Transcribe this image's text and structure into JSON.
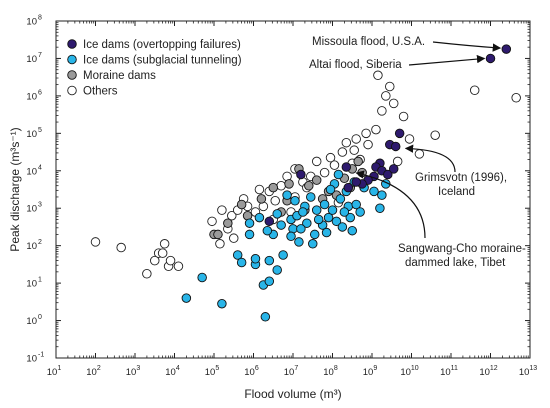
{
  "chart_data": {
    "type": "scatter",
    "xlabel": "Flood volume (m³)",
    "ylabel": "Peak discharge (m³s⁻¹)",
    "x_scale": "log",
    "y_scale": "log",
    "xlim": [
      1,
      13
    ],
    "ylim": [
      -1,
      8
    ],
    "x_ticks": [
      {
        "base": "10",
        "exp": "1"
      },
      {
        "base": "10",
        "exp": "2"
      },
      {
        "base": "10",
        "exp": "3"
      },
      {
        "base": "10",
        "exp": "4"
      },
      {
        "base": "10",
        "exp": "5"
      },
      {
        "base": "10",
        "exp": "6"
      },
      {
        "base": "10",
        "exp": "7"
      },
      {
        "base": "10",
        "exp": "8"
      },
      {
        "base": "10",
        "exp": "9"
      },
      {
        "base": "10",
        "exp": "10"
      },
      {
        "base": "10",
        "exp": "11"
      },
      {
        "base": "10",
        "exp": "12"
      },
      {
        "base": "10",
        "exp": "13"
      }
    ],
    "y_ticks": [
      {
        "base": "10",
        "exp": "-1"
      },
      {
        "base": "10",
        "exp": "0"
      },
      {
        "base": "10",
        "exp": "1"
      },
      {
        "base": "10",
        "exp": "2"
      },
      {
        "base": "10",
        "exp": "3"
      },
      {
        "base": "10",
        "exp": "4"
      },
      {
        "base": "10",
        "exp": "5"
      },
      {
        "base": "10",
        "exp": "6"
      },
      {
        "base": "10",
        "exp": "7"
      },
      {
        "base": "10",
        "exp": "8"
      }
    ],
    "grid": false,
    "legend_position": "top-left",
    "series": [
      {
        "name": "Ice dams (overtopping failures)",
        "color": "#2e1a6e",
        "stroke": "#111111",
        "points": [
          [
            12.4,
            7.25
          ],
          [
            12.0,
            7.0
          ],
          [
            9.7,
            5.0
          ],
          [
            9.45,
            4.7
          ],
          [
            9.6,
            4.65
          ],
          [
            9.2,
            4.2
          ],
          [
            9.1,
            4.1
          ],
          [
            9.25,
            4.0
          ],
          [
            9.4,
            3.9
          ],
          [
            9.05,
            3.85
          ],
          [
            8.9,
            3.75
          ],
          [
            8.75,
            3.65
          ],
          [
            8.6,
            3.7
          ],
          [
            8.4,
            3.55
          ],
          [
            8.35,
            4.1
          ],
          [
            7.2,
            3.9
          ],
          [
            6.4,
            2.65
          ],
          [
            9.55,
            4.05
          ]
        ]
      },
      {
        "name": "Ice dams (subglacial tunneling)",
        "color": "#29b5e8",
        "stroke": "#111111",
        "points": [
          [
            4.3,
            0.6
          ],
          [
            5.2,
            0.45
          ],
          [
            4.7,
            1.15
          ],
          [
            5.6,
            1.75
          ],
          [
            6.05,
            1.5
          ],
          [
            6.25,
            0.95
          ],
          [
            6.4,
            1.05
          ],
          [
            6.6,
            1.35
          ],
          [
            6.3,
            0.1
          ],
          [
            5.7,
            1.55
          ],
          [
            6.05,
            1.65
          ],
          [
            5.9,
            2.3
          ],
          [
            6.4,
            1.6
          ],
          [
            6.75,
            1.75
          ],
          [
            7.15,
            2.1
          ],
          [
            7.0,
            2.45
          ],
          [
            6.5,
            2.3
          ],
          [
            6.7,
            2.55
          ],
          [
            6.95,
            2.7
          ],
          [
            7.1,
            2.8
          ],
          [
            7.35,
            2.6
          ],
          [
            7.55,
            2.3
          ],
          [
            7.75,
            2.55
          ],
          [
            7.9,
            2.75
          ],
          [
            7.6,
            2.95
          ],
          [
            7.3,
            3.05
          ],
          [
            7.05,
            3.2
          ],
          [
            7.45,
            3.3
          ],
          [
            7.8,
            3.1
          ],
          [
            8.0,
            2.95
          ],
          [
            8.2,
            3.25
          ],
          [
            8.4,
            3.05
          ],
          [
            8.1,
            2.65
          ],
          [
            7.85,
            2.35
          ],
          [
            8.25,
            2.5
          ],
          [
            8.45,
            2.75
          ],
          [
            8.6,
            3.1
          ],
          [
            8.35,
            3.45
          ],
          [
            8.55,
            3.7
          ],
          [
            8.8,
            3.55
          ],
          [
            9.05,
            3.45
          ],
          [
            8.7,
            2.9
          ],
          [
            9.25,
            3.35
          ],
          [
            9.35,
            3.65
          ],
          [
            9.2,
            3.0
          ],
          [
            8.05,
            3.65
          ],
          [
            8.15,
            3.9
          ],
          [
            6.6,
            2.85
          ],
          [
            6.85,
            3.35
          ],
          [
            6.35,
            2.4
          ],
          [
            7.5,
            2.05
          ],
          [
            6.95,
            2.25
          ],
          [
            7.2,
            2.45
          ],
          [
            7.65,
            2.7
          ],
          [
            8.5,
            2.4
          ],
          [
            6.15,
            2.75
          ],
          [
            7.95,
            3.5
          ],
          [
            8.3,
            2.9
          ],
          [
            5.9,
            2.6
          ],
          [
            7.25,
            2.9
          ]
        ]
      },
      {
        "name": "Moraine dams",
        "color": "#9a9a9a",
        "stroke": "#111111",
        "points": [
          [
            5.0,
            2.3
          ],
          [
            5.1,
            2.3
          ],
          [
            5.35,
            2.6
          ],
          [
            5.7,
            3.1
          ],
          [
            6.2,
            3.25
          ],
          [
            6.5,
            3.55
          ],
          [
            6.7,
            2.9
          ],
          [
            6.85,
            3.2
          ],
          [
            7.15,
            4.05
          ],
          [
            7.4,
            3.6
          ],
          [
            7.6,
            3.75
          ],
          [
            7.9,
            3.45
          ],
          [
            8.1,
            3.35
          ],
          [
            8.3,
            3.8
          ],
          [
            8.5,
            4.05
          ],
          [
            8.65,
            4.25
          ],
          [
            7.3,
            2.95
          ],
          [
            6.9,
            3.65
          ],
          [
            5.85,
            2.8
          ],
          [
            8.75,
            3.95
          ],
          [
            7.75,
            3.25
          ],
          [
            8.45,
            3.55
          ]
        ]
      },
      {
        "name": "Others",
        "color": "#ffffff",
        "stroke": "#222222",
        "points": [
          [
            2.0,
            2.1
          ],
          [
            2.65,
            1.95
          ],
          [
            3.3,
            1.25
          ],
          [
            3.5,
            1.6
          ],
          [
            3.6,
            1.8
          ],
          [
            3.75,
            2.05
          ],
          [
            3.85,
            1.45
          ],
          [
            3.9,
            1.6
          ],
          [
            4.1,
            1.45
          ],
          [
            3.7,
            1.8
          ],
          [
            4.95,
            2.65
          ],
          [
            5.15,
            2.05
          ],
          [
            5.35,
            2.45
          ],
          [
            5.45,
            2.8
          ],
          [
            5.6,
            2.95
          ],
          [
            5.75,
            3.25
          ],
          [
            5.85,
            3.05
          ],
          [
            6.05,
            2.9
          ],
          [
            6.25,
            3.05
          ],
          [
            6.4,
            3.45
          ],
          [
            6.55,
            3.2
          ],
          [
            6.7,
            3.6
          ],
          [
            6.85,
            3.85
          ],
          [
            7.05,
            3.3
          ],
          [
            7.25,
            3.7
          ],
          [
            7.45,
            3.85
          ],
          [
            7.6,
            4.25
          ],
          [
            7.8,
            3.95
          ],
          [
            7.95,
            4.35
          ],
          [
            8.05,
            4.15
          ],
          [
            8.25,
            4.5
          ],
          [
            8.35,
            4.75
          ],
          [
            8.55,
            4.55
          ],
          [
            8.7,
            4.3
          ],
          [
            8.9,
            4.7
          ],
          [
            9.1,
            5.1
          ],
          [
            9.25,
            5.6
          ],
          [
            9.35,
            6.0
          ],
          [
            9.45,
            6.25
          ],
          [
            9.55,
            5.8
          ],
          [
            9.15,
            6.55
          ],
          [
            9.8,
            5.45
          ],
          [
            9.95,
            4.85
          ],
          [
            10.2,
            4.45
          ],
          [
            10.6,
            4.95
          ],
          [
            11.6,
            6.15
          ],
          [
            12.65,
            5.95
          ],
          [
            8.5,
            4.2
          ],
          [
            8.85,
            5.0
          ],
          [
            9.65,
            4.25
          ],
          [
            6.5,
            2.7
          ],
          [
            5.2,
            2.95
          ],
          [
            7.35,
            3.55
          ],
          [
            6.15,
            3.5
          ],
          [
            5.5,
            2.2
          ],
          [
            7.05,
            4.05
          ],
          [
            8.15,
            3.15
          ],
          [
            6.95,
            2.9
          ],
          [
            8.6,
            4.85
          ]
        ]
      }
    ],
    "annotations": [
      {
        "text": "Missoula flood, U.S.A.",
        "target": [
          12.4,
          7.25
        ]
      },
      {
        "text": "Altai flood, Siberia",
        "target": [
          12.0,
          7.0
        ]
      },
      {
        "lines": [
          "Grimsvotn (1996),",
          "Iceland"
        ],
        "target": [
          9.7,
          4.65
        ]
      },
      {
        "lines": [
          "Sangwang-Cho moraine-",
          "dammed lake, Tibet"
        ],
        "target": [
          8.45,
          4.05
        ]
      }
    ]
  }
}
